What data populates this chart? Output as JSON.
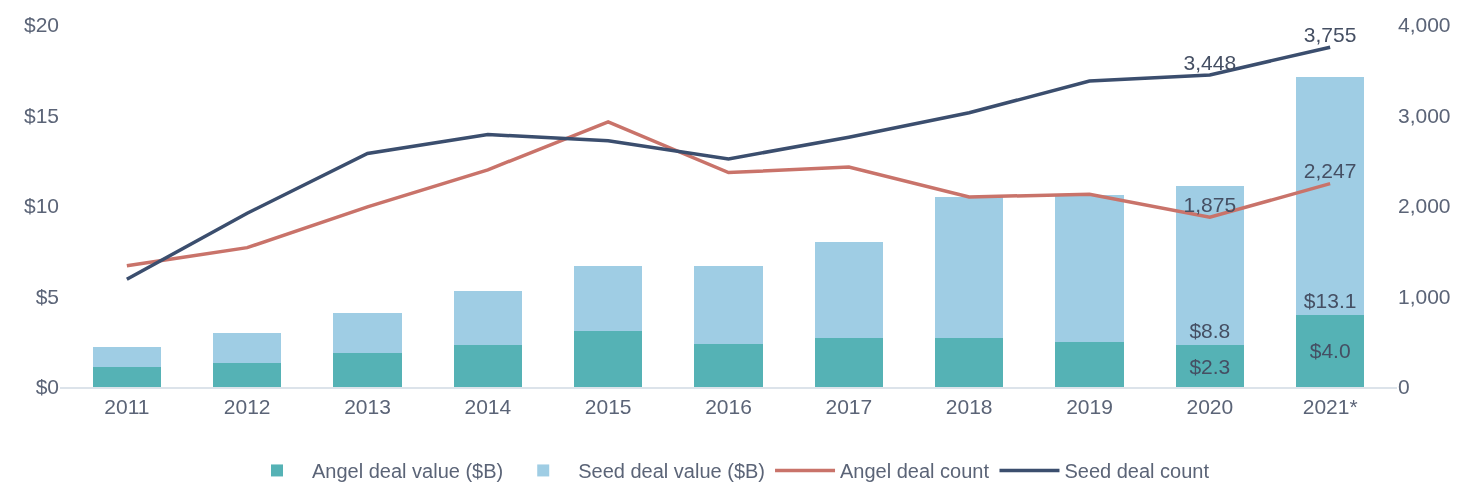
{
  "chart_data": {
    "type": "bar",
    "stacked": true,
    "categories": [
      "2011",
      "2012",
      "2013",
      "2014",
      "2015",
      "2016",
      "2017",
      "2018",
      "2019",
      "2020",
      "2021*"
    ],
    "series": [
      {
        "name": "Angel deal value ($B)",
        "color": "#55b2b5",
        "values": [
          1.1,
          1.3,
          1.9,
          2.3,
          3.1,
          2.4,
          2.7,
          2.7,
          2.5,
          2.3,
          4.0
        ],
        "value_labels": [
          null,
          null,
          null,
          null,
          null,
          null,
          null,
          null,
          null,
          "$2.3",
          "$4.0"
        ]
      },
      {
        "name": "Seed deal value ($B)",
        "color": "#9fcde4",
        "values": [
          1.1,
          1.7,
          2.2,
          3.0,
          3.6,
          4.3,
          5.3,
          7.8,
          8.1,
          8.8,
          13.1
        ],
        "value_labels": [
          null,
          null,
          null,
          null,
          null,
          null,
          null,
          null,
          null,
          "$8.8",
          "$13.1"
        ]
      },
      {
        "name": "Angel deal count",
        "type": "line",
        "axis": "y2",
        "color": "#c9736a",
        "values": [
          1340,
          1540,
          1990,
          2400,
          2930,
          2370,
          2430,
          2100,
          2130,
          1875,
          2247
        ],
        "value_labels": [
          null,
          null,
          null,
          null,
          null,
          null,
          null,
          null,
          null,
          "1,875",
          "2,247"
        ]
      },
      {
        "name": "Seed deal count",
        "type": "line",
        "axis": "y2",
        "color": "#3b4e6e",
        "values": [
          1190,
          1920,
          2580,
          2790,
          2720,
          2520,
          2760,
          3030,
          3380,
          3448,
          3755
        ],
        "value_labels": [
          null,
          null,
          null,
          null,
          null,
          null,
          null,
          null,
          null,
          "3,448",
          "3,755"
        ]
      }
    ],
    "ylim": [
      0,
      20
    ],
    "yticks": [
      {
        "value": 0,
        "label": "$0"
      },
      {
        "value": 5,
        "label": "$5"
      },
      {
        "value": 10,
        "label": "$10"
      },
      {
        "value": 15,
        "label": "$15"
      },
      {
        "value": 20,
        "label": "$20"
      }
    ],
    "y2lim": [
      0,
      4000
    ],
    "y2ticks": [
      0,
      {
        "value": 1000,
        "label": "1,000"
      },
      {
        "value": 2000,
        "label": "2,000"
      },
      {
        "value": 3000,
        "label": "3,000"
      },
      {
        "value": 4000,
        "label": "4,000"
      }
    ],
    "legend": "bottom"
  }
}
